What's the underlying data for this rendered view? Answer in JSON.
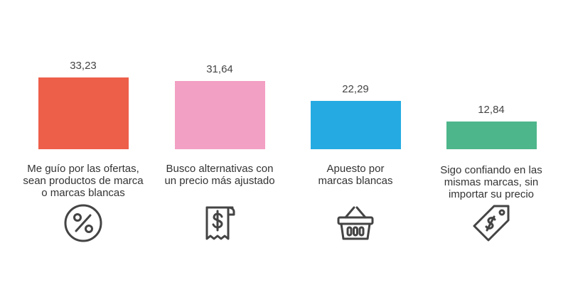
{
  "chart_data": {
    "type": "bar",
    "categories": [
      "Me guío por las ofertas, sean productos de marca o marcas blancas",
      "Busco alternativas con un precio más ajustado",
      "Apuesto por marcas blancas",
      "Sigo confiando en las mismas marcas, sin importar su precio"
    ],
    "category_lines": [
      [
        "Me guío por las ofertas,",
        "sean productos de marca",
        "o marcas blancas"
      ],
      [
        "Busco alternativas con",
        "un precio más ajustado"
      ],
      [
        "Apuesto por",
        "marcas blancas"
      ],
      [
        "Sigo confiando en las",
        "mismas marcas, sin",
        "importar su precio"
      ]
    ],
    "values": [
      33.23,
      31.64,
      22.29,
      12.84
    ],
    "value_labels": [
      "33,23",
      "31,64",
      "22,29",
      "12,84"
    ],
    "colors": [
      "#EE5F4A",
      "#F2A0C3",
      "#25ABE2",
      "#4DB68A"
    ],
    "icons": [
      "percent-circle-icon",
      "receipt-dollar-icon",
      "shopping-basket-icon",
      "dollar-price-tag-icon"
    ],
    "ylim": [
      0,
      33.23
    ],
    "grid": false,
    "legend": "none"
  }
}
